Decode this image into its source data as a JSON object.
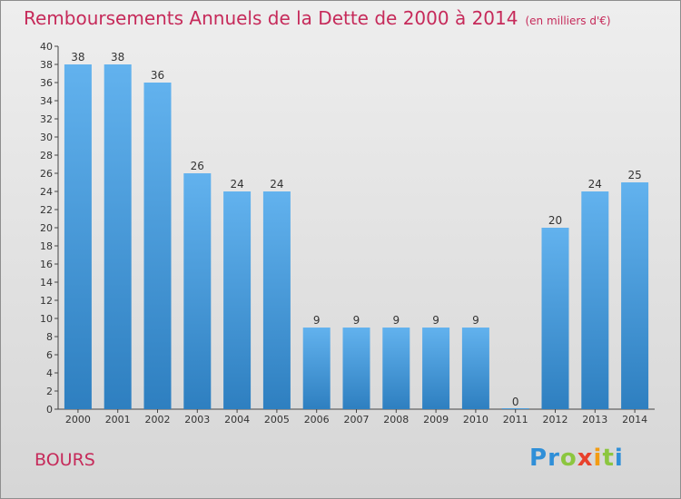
{
  "title": "Remboursements Annuels de la Dette de 2000 à 2014",
  "unit": "(en milliers d'€)",
  "commune": "BOURS",
  "logo": {
    "letters": [
      "P",
      "r",
      "o",
      "x",
      "i",
      "t",
      "i"
    ]
  },
  "colors": {
    "title": "#c62a5a",
    "bar_top": "#62b2ee",
    "bar_bottom": "#2e7fc0"
  },
  "chart_data": {
    "type": "bar",
    "categories": [
      "2000",
      "2001",
      "2002",
      "2003",
      "2004",
      "2005",
      "2006",
      "2007",
      "2008",
      "2009",
      "2010",
      "2011",
      "2012",
      "2013",
      "2014"
    ],
    "values": [
      38,
      38,
      36,
      26,
      24,
      24,
      9,
      9,
      9,
      9,
      9,
      0,
      20,
      24,
      25
    ],
    "ylim": [
      0,
      40
    ],
    "ytick_step": 2,
    "grid": false,
    "data_labels": true
  }
}
